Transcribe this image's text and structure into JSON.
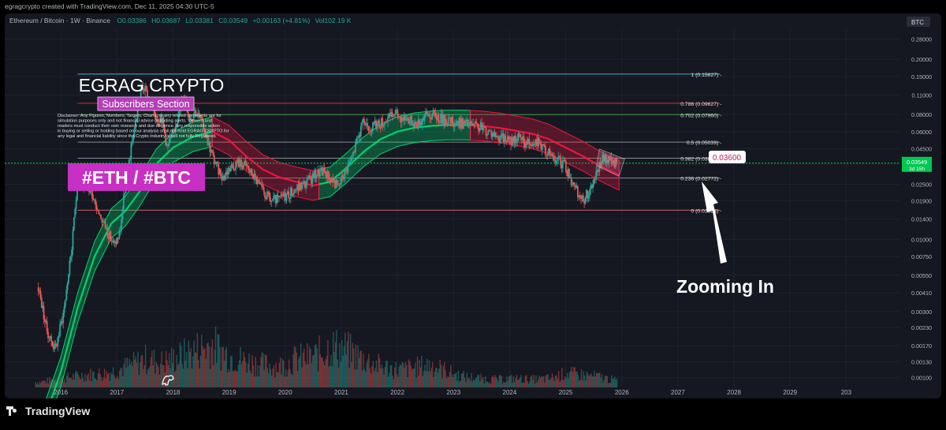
{
  "credit": "egragcrypto created with TradingView.com, Dec 11, 2025 04:30 UTC-5",
  "branding": {
    "name": "TradingView"
  },
  "symbol_line": {
    "name": "Ethereum / Bitcoin · 1W · Binance",
    "open": "O0.03386",
    "high": "H0.03687",
    "low": "L0.03381",
    "close": "C0.03549",
    "change": "+0.00163 (+4.81%)",
    "volume": "Vol102.19 K"
  },
  "currency_label": "BTC",
  "overlay": {
    "title": "EGRAG CRYPTO",
    "subtitle": "Subscribers Section",
    "disclaimer": [
      "Disclaimer: Any Figures, Numbers, Targets, Charts, or any related comments are for",
      "simulation purposes only and not financial advice or trading alerts. Viewers and",
      "readers must conduct their own research and due diligence. Any responsible action",
      "in buying or selling or holding based on our analysis shall not hold EGRAG CRYPTO for",
      "any legal and financial liability since the Crypto industry is still not fully Regulated."
    ],
    "pair_label": "#ETH / #BTC",
    "annotation": "Zooming In",
    "target_label": "0.03600"
  },
  "colors": {
    "background": "#151821",
    "up": "#26a69a",
    "down": "#ef5350",
    "band_green": "#00e676",
    "band_red": "#ff1744",
    "magenta": "#cc33c0",
    "price_green": "#00c853"
  },
  "chart_data": {
    "type": "candlestick",
    "interval": "1W",
    "scale": "log",
    "x_axis": {
      "range": [
        2015.0,
        2030.95
      ],
      "ticks": [
        "2016",
        "2017",
        "2018",
        "2019",
        "2020",
        "2021",
        "2022",
        "2023",
        "2024",
        "2025",
        "2026",
        "2027",
        "2028",
        "2029",
        "203"
      ]
    },
    "y_axis": {
      "range": [
        0.00085,
        0.33
      ],
      "ticks": [
        "0.28000",
        "0.20000",
        "0.15000",
        "0.11000",
        "0.08000",
        "0.06000",
        "0.04500",
        "0.03500",
        "0.02500",
        "0.01900",
        "0.01400",
        "0.01000",
        "0.00750",
        "0.00550",
        "0.00410",
        "0.00300",
        "0.00230",
        "0.00170",
        "0.00130",
        "0.00100"
      ]
    },
    "fib_levels": [
      {
        "label": "1 (0.15627)",
        "value": 0.15627,
        "color": "#4dd0e1"
      },
      {
        "label": "0.786 (0.09627)",
        "value": 0.09627,
        "color": "#e53935"
      },
      {
        "label": "0.702 (0.07960)",
        "value": 0.0796,
        "color": "#4caf50"
      },
      {
        "label": "0.5 (0.05039)",
        "value": 0.05039,
        "color": "#9e9e9e"
      },
      {
        "label": "0.382 (0.03858)",
        "value": 0.03858,
        "color": "#9e9e9e"
      },
      {
        "label": "0.236 (0.02772)",
        "value": 0.02772,
        "color": "#9e9e9e"
      },
      {
        "label": "0 (0.01624)",
        "value": 0.01624,
        "color": "#e57373"
      }
    ],
    "current_price": {
      "value": 0.03549,
      "label": "0.03549",
      "countdown": "3d 15h"
    },
    "price_path": [
      [
        2015.6,
        0.0045
      ],
      [
        2015.75,
        0.0022
      ],
      [
        2015.9,
        0.0016
      ],
      [
        2016.05,
        0.003
      ],
      [
        2016.2,
        0.009
      ],
      [
        2016.3,
        0.028
      ],
      [
        2016.4,
        0.024
      ],
      [
        2016.55,
        0.022
      ],
      [
        2016.7,
        0.015
      ],
      [
        2016.85,
        0.011
      ],
      [
        2016.95,
        0.009
      ],
      [
        2017.05,
        0.011
      ],
      [
        2017.15,
        0.025
      ],
      [
        2017.3,
        0.06
      ],
      [
        2017.45,
        0.13
      ],
      [
        2017.55,
        0.11
      ],
      [
        2017.7,
        0.078
      ],
      [
        2017.8,
        0.075
      ],
      [
        2017.9,
        0.045
      ],
      [
        2018.0,
        0.06
      ],
      [
        2018.1,
        0.08
      ],
      [
        2018.2,
        0.11
      ],
      [
        2018.3,
        0.075
      ],
      [
        2018.4,
        0.085
      ],
      [
        2018.5,
        0.072
      ],
      [
        2018.6,
        0.055
      ],
      [
        2018.7,
        0.04
      ],
      [
        2018.8,
        0.032
      ],
      [
        2018.9,
        0.028
      ],
      [
        2019.0,
        0.033
      ],
      [
        2019.15,
        0.036
      ],
      [
        2019.3,
        0.034
      ],
      [
        2019.45,
        0.028
      ],
      [
        2019.6,
        0.022
      ],
      [
        2019.75,
        0.019
      ],
      [
        2019.9,
        0.0195
      ],
      [
        2020.1,
        0.022
      ],
      [
        2020.25,
        0.024
      ],
      [
        2020.4,
        0.026
      ],
      [
        2020.55,
        0.03
      ],
      [
        2020.7,
        0.031
      ],
      [
        2020.8,
        0.028
      ],
      [
        2020.95,
        0.024
      ],
      [
        2021.05,
        0.03
      ],
      [
        2021.2,
        0.04
      ],
      [
        2021.3,
        0.055
      ],
      [
        2021.4,
        0.07
      ],
      [
        2021.55,
        0.065
      ],
      [
        2021.7,
        0.07
      ],
      [
        2021.85,
        0.075
      ],
      [
        2021.95,
        0.082
      ],
      [
        2022.05,
        0.077
      ],
      [
        2022.2,
        0.074
      ],
      [
        2022.35,
        0.068
      ],
      [
        2022.5,
        0.078
      ],
      [
        2022.65,
        0.08
      ],
      [
        2022.8,
        0.074
      ],
      [
        2022.95,
        0.071
      ],
      [
        2023.1,
        0.07
      ],
      [
        2023.3,
        0.067
      ],
      [
        2023.5,
        0.064
      ],
      [
        2023.7,
        0.058
      ],
      [
        2023.85,
        0.054
      ],
      [
        2024.0,
        0.052
      ],
      [
        2024.15,
        0.055
      ],
      [
        2024.3,
        0.05
      ],
      [
        2024.45,
        0.053
      ],
      [
        2024.6,
        0.045
      ],
      [
        2024.75,
        0.04
      ],
      [
        2024.9,
        0.037
      ],
      [
        2025.0,
        0.033
      ],
      [
        2025.15,
        0.024
      ],
      [
        2025.3,
        0.019
      ],
      [
        2025.45,
        0.023
      ],
      [
        2025.55,
        0.03
      ],
      [
        2025.65,
        0.038
      ],
      [
        2025.75,
        0.037
      ],
      [
        2025.85,
        0.035
      ],
      [
        2025.92,
        0.0355
      ]
    ],
    "trend_band": {
      "center": [
        [
          2015.6,
          0.00038
        ],
        [
          2016.0,
          0.0011
        ],
        [
          2016.3,
          0.0032
        ],
        [
          2016.6,
          0.0075
        ],
        [
          2016.9,
          0.013
        ],
        [
          2017.15,
          0.016
        ],
        [
          2017.4,
          0.022
        ],
        [
          2017.7,
          0.035
        ],
        [
          2018.0,
          0.046
        ],
        [
          2018.35,
          0.055
        ],
        [
          2018.7,
          0.06
        ],
        [
          2019.0,
          0.052
        ],
        [
          2019.3,
          0.04
        ],
        [
          2019.6,
          0.032
        ],
        [
          2019.9,
          0.028
        ],
        [
          2020.2,
          0.026
        ],
        [
          2020.5,
          0.0245
        ],
        [
          2020.8,
          0.026
        ],
        [
          2021.1,
          0.033
        ],
        [
          2021.4,
          0.043
        ],
        [
          2021.7,
          0.053
        ],
        [
          2022.0,
          0.06
        ],
        [
          2022.3,
          0.064
        ],
        [
          2022.6,
          0.066
        ],
        [
          2022.9,
          0.067
        ],
        [
          2023.2,
          0.067
        ],
        [
          2023.5,
          0.066
        ],
        [
          2023.8,
          0.064
        ],
        [
          2024.1,
          0.061
        ],
        [
          2024.4,
          0.058
        ],
        [
          2024.7,
          0.053
        ],
        [
          2025.0,
          0.046
        ],
        [
          2025.3,
          0.04
        ],
        [
          2025.6,
          0.034
        ],
        [
          2025.95,
          0.029
        ]
      ],
      "band_factor": 1.28,
      "green_segments": [
        [
          2015.6,
          2018.7
        ],
        [
          2020.6,
          2023.3
        ]
      ],
      "red_segments": [
        [
          2018.7,
          2020.6
        ],
        [
          2023.3,
          2025.95
        ]
      ]
    },
    "volume": [
      [
        2015.6,
        0.3
      ],
      [
        2016.0,
        0.5
      ],
      [
        2016.4,
        0.7
      ],
      [
        2016.8,
        0.8
      ],
      [
        2017.2,
        1.2
      ],
      [
        2017.5,
        1.6
      ],
      [
        2017.8,
        1.4
      ],
      [
        2018.1,
        1.7
      ],
      [
        2018.4,
        2.1
      ],
      [
        2018.7,
        2.4
      ],
      [
        2019.0,
        1.8
      ],
      [
        2019.3,
        1.5
      ],
      [
        2019.6,
        1.3
      ],
      [
        2019.9,
        1.2
      ],
      [
        2020.2,
        1.6
      ],
      [
        2020.5,
        1.7
      ],
      [
        2020.8,
        2.3
      ],
      [
        2021.1,
        2.1
      ],
      [
        2021.4,
        1.6
      ],
      [
        2021.7,
        1.2
      ],
      [
        2022.0,
        1.0
      ],
      [
        2022.3,
        1.1
      ],
      [
        2022.6,
        1.3
      ],
      [
        2022.9,
        0.9
      ],
      [
        2023.2,
        0.6
      ],
      [
        2023.5,
        0.5
      ],
      [
        2023.8,
        0.45
      ],
      [
        2024.1,
        0.5
      ],
      [
        2024.4,
        0.45
      ],
      [
        2024.7,
        0.5
      ],
      [
        2025.0,
        0.8
      ],
      [
        2025.3,
        0.7
      ],
      [
        2025.6,
        0.6
      ],
      [
        2025.9,
        0.4
      ]
    ]
  }
}
